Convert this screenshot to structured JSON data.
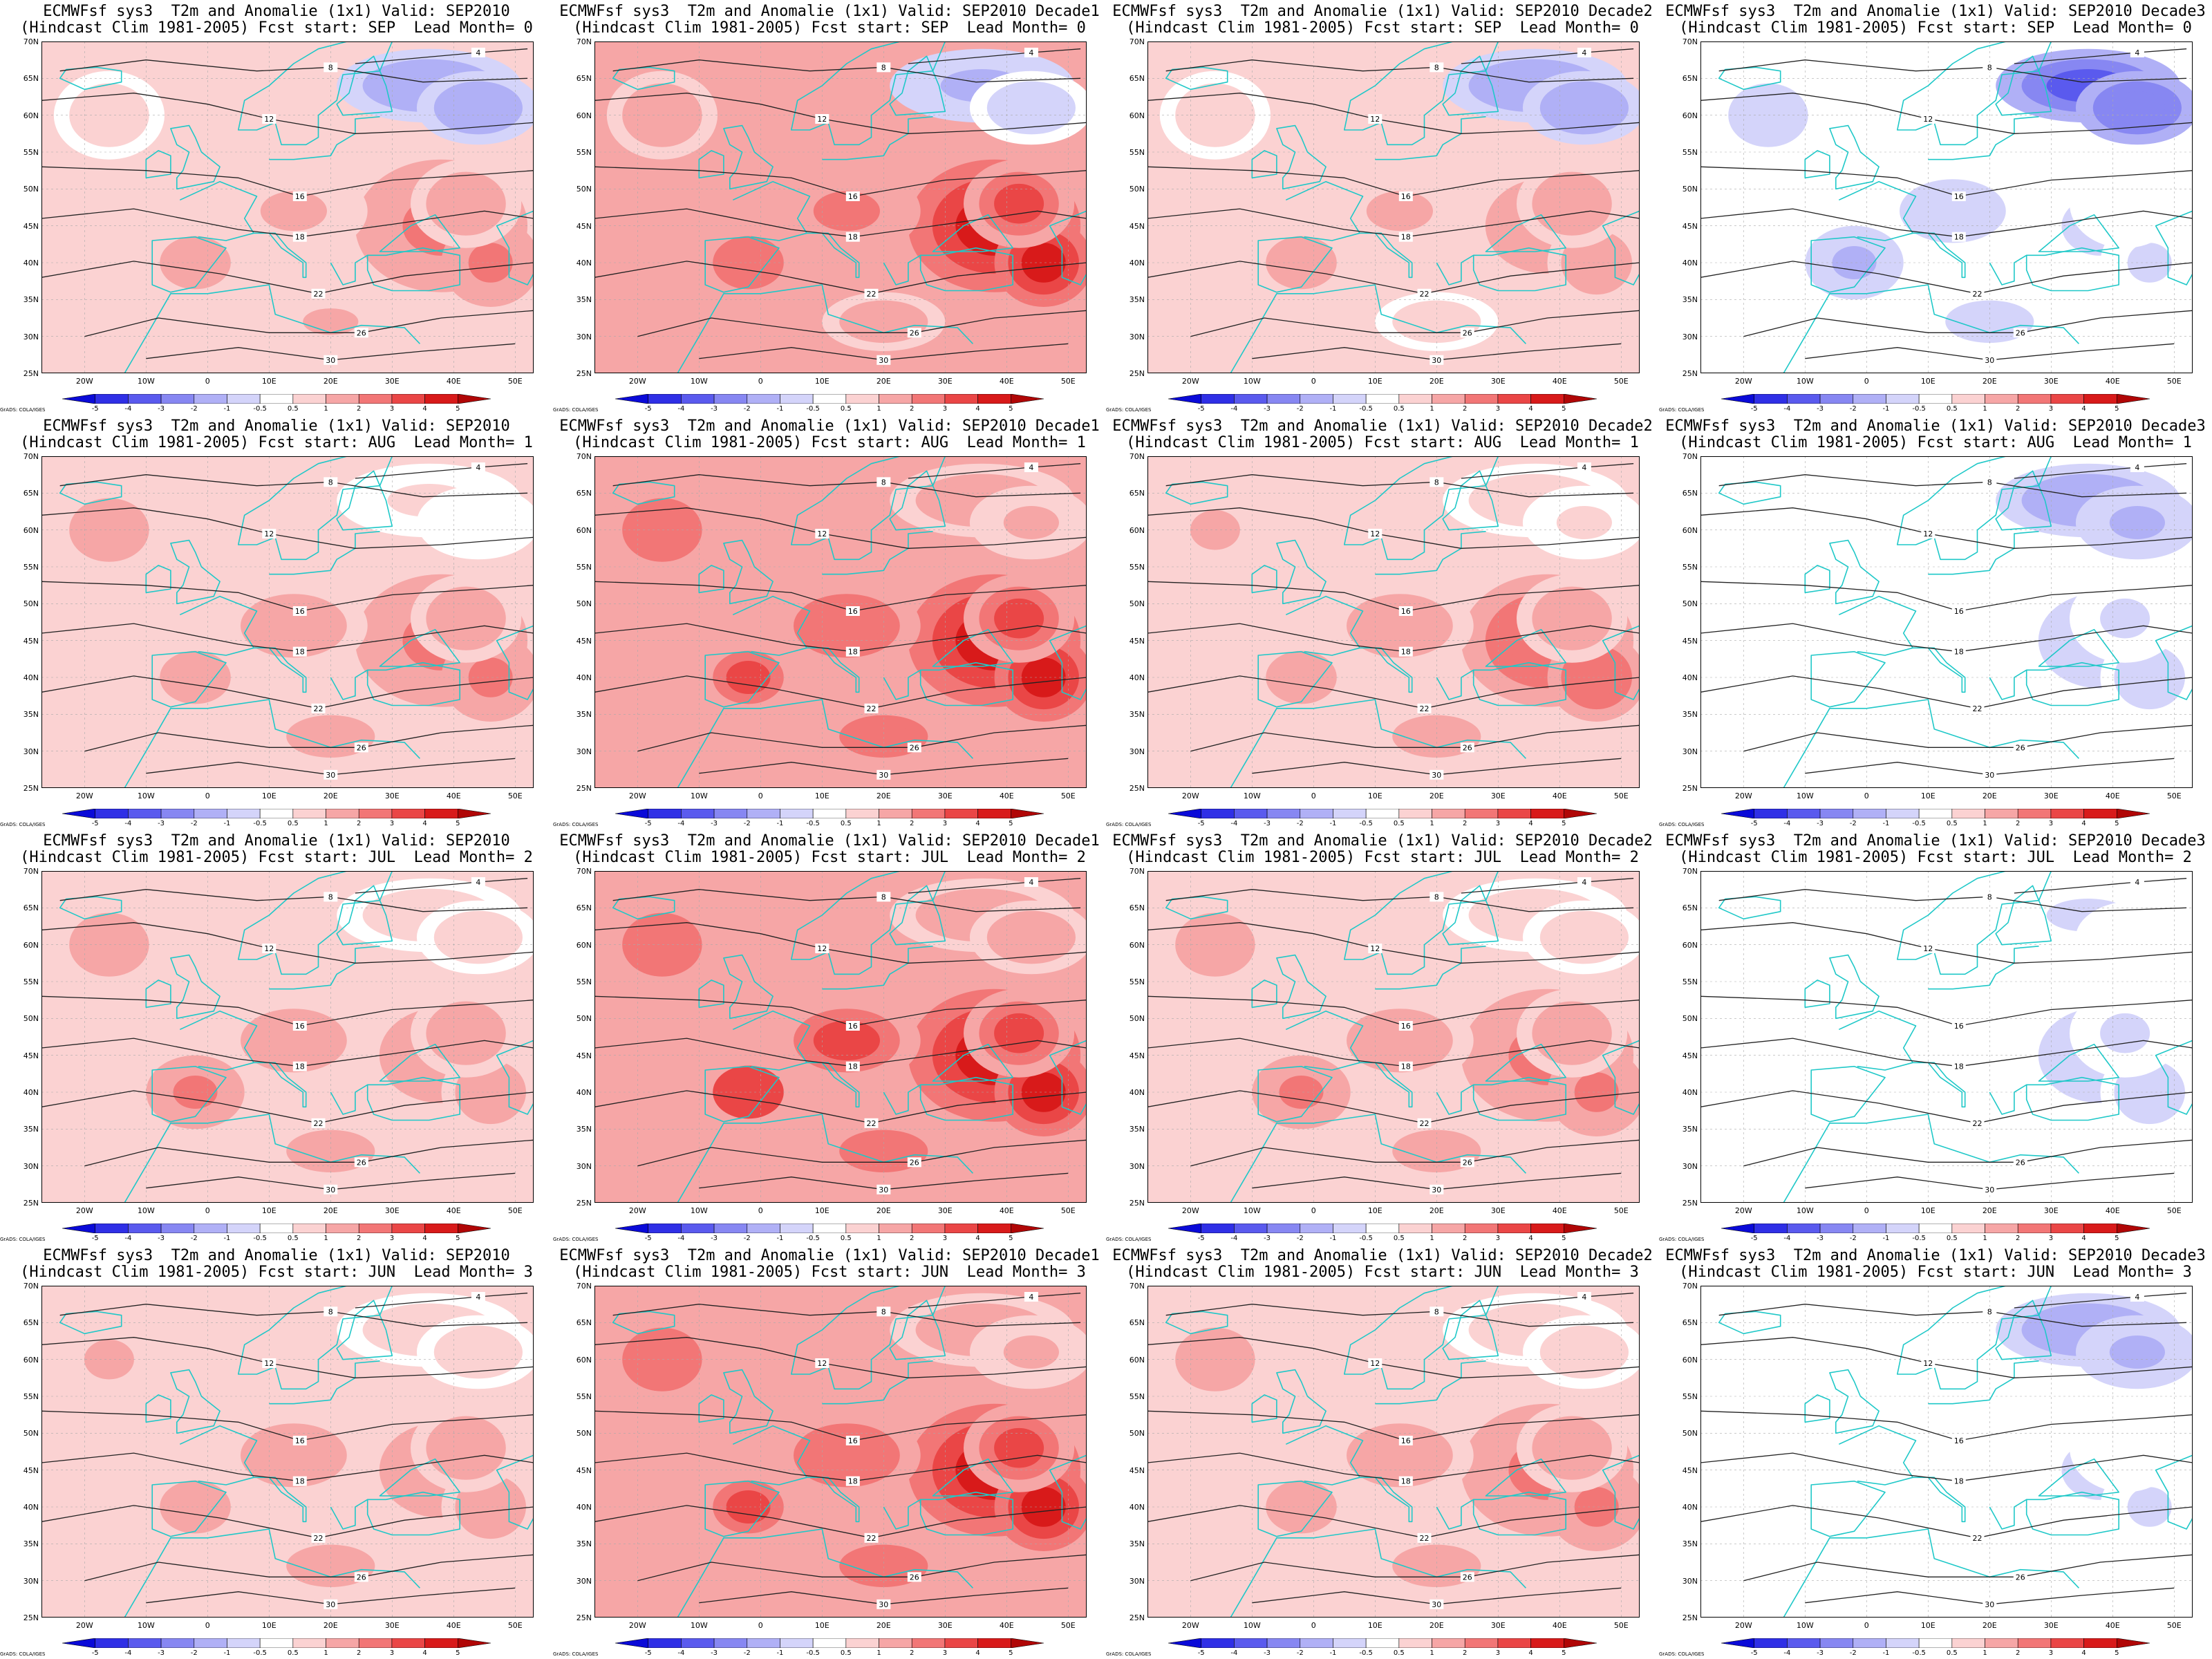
{
  "title_line1_template": "ECMWFsf sys3  T2m and Anomalie (1x1) Valid: {valid}",
  "title_line2_template": "(Hindcast Clim 1981-2005) Fcst start: {start}  Lead Month= {lead}",
  "columns": [
    {
      "valid": "SEP2010"
    },
    {
      "valid": "SEP2010 Decade1"
    },
    {
      "valid": "SEP2010 Decade2"
    },
    {
      "valid": "SEP2010 Decade3"
    }
  ],
  "rows": [
    {
      "start": "SEP",
      "lead": "0"
    },
    {
      "start": "AUG",
      "lead": "1"
    },
    {
      "start": "JUL",
      "lead": "2"
    },
    {
      "start": "JUN",
      "lead": "3"
    }
  ],
  "panels": [
    {
      "row": 0,
      "col": 0,
      "title_line1": "ECMWFsf sys3  T2m and Anomalie (1x1) Valid: SEP2010",
      "title_line2": "(Hindcast Clim 1981-2005) Fcst start: SEP  Lead Month= 0",
      "base_anomaly": 0.9,
      "east_anomaly": 2.4,
      "north_anomaly": -1.6
    },
    {
      "row": 0,
      "col": 1,
      "title_line1": "ECMWFsf sys3  T2m and Anomalie (1x1) Valid: SEP2010 Decade1",
      "title_line2": "(Hindcast Clim 1981-2005) Fcst start: SEP  Lead Month= 0",
      "base_anomaly": 1.6,
      "east_anomaly": 5,
      "north_anomaly": -1.2
    },
    {
      "row": 0,
      "col": 2,
      "title_line1": "ECMWFsf sys3  T2m and Anomalie (1x1) Valid: SEP2010 Decade2",
      "title_line2": "(Hindcast Clim 1981-2005) Fcst start: SEP  Lead Month= 0",
      "base_anomaly": 0.8,
      "east_anomaly": 1.8,
      "north_anomaly": -1.8
    },
    {
      "row": 0,
      "col": 3,
      "title_line1": "ECMWFsf sys3  T2m and Anomalie (1x1) Valid: SEP2010 Decade3",
      "title_line2": "(Hindcast Clim 1981-2005) Fcst start: SEP  Lead Month= 0",
      "base_anomaly": -0.7,
      "east_anomaly": -0.6,
      "north_anomaly": -3.5
    },
    {
      "row": 1,
      "col": 0,
      "title_line1": "ECMWFsf sys3  T2m and Anomalie (1x1) Valid: SEP2010",
      "title_line2": "(Hindcast Clim 1981-2005) Fcst start: AUG  Lead Month= 1",
      "base_anomaly": 1.2,
      "east_anomaly": 2.5,
      "north_anomaly": 0.6
    },
    {
      "row": 1,
      "col": 1,
      "title_line1": "ECMWFsf sys3  T2m and Anomalie (1x1) Valid: SEP2010 Decade1",
      "title_line2": "(Hindcast Clim 1981-2005) Fcst start: AUG  Lead Month= 1",
      "base_anomaly": 2.3,
      "east_anomaly": 5,
      "north_anomaly": 1.4
    },
    {
      "row": 1,
      "col": 2,
      "title_line1": "ECMWFsf sys3  T2m and Anomalie (1x1) Valid: SEP2010 Decade2",
      "title_line2": "(Hindcast Clim 1981-2005) Fcst start: AUG  Lead Month= 1",
      "base_anomaly": 1.1,
      "east_anomaly": 2.6,
      "north_anomaly": 0.7
    },
    {
      "row": 1,
      "col": 3,
      "title_line1": "ECMWFsf sys3  T2m and Anomalie (1x1) Valid: SEP2010 Decade3",
      "title_line2": "(Hindcast Clim 1981-2005) Fcst start: AUG  Lead Month= 1",
      "base_anomaly": 0.2,
      "east_anomaly": -0.8,
      "north_anomaly": -1.5
    },
    {
      "row": 2,
      "col": 0,
      "title_line1": "ECMWFsf sys3  T2m and Anomalie (1x1) Valid: SEP2010",
      "title_line2": "(Hindcast Clim 1981-2005) Fcst start: JUL  Lead Month= 2",
      "base_anomaly": 1.3,
      "east_anomaly": 1.8,
      "north_anomaly": 0.8
    },
    {
      "row": 2,
      "col": 1,
      "title_line1": "ECMWFsf sys3  T2m and Anomalie (1x1) Valid: SEP2010 Decade1",
      "title_line2": "(Hindcast Clim 1981-2005) Fcst start: JUL  Lead Month= 2",
      "base_anomaly": 2.4,
      "east_anomaly": 5,
      "north_anomaly": 1.8
    },
    {
      "row": 2,
      "col": 2,
      "title_line1": "ECMWFsf sys3  T2m and Anomalie (1x1) Valid: SEP2010 Decade2",
      "title_line2": "(Hindcast Clim 1981-2005) Fcst start: JUL  Lead Month= 2",
      "base_anomaly": 1.3,
      "east_anomaly": 2.2,
      "north_anomaly": 0.8
    },
    {
      "row": 2,
      "col": 3,
      "title_line1": "ECMWFsf sys3  T2m and Anomalie (1x1) Valid: SEP2010 Decade3",
      "title_line2": "(Hindcast Clim 1981-2005) Fcst start: JUL  Lead Month= 2",
      "base_anomaly": 0.3,
      "east_anomaly": -0.8,
      "north_anomaly": -0.6
    },
    {
      "row": 3,
      "col": 0,
      "title_line1": "ECMWFsf sys3  T2m and Anomalie (1x1) Valid: SEP2010",
      "title_line2": "(Hindcast Clim 1981-2005) Fcst start: JUN  Lead Month= 3",
      "base_anomaly": 1.1,
      "east_anomaly": 1.8,
      "north_anomaly": 0.8
    },
    {
      "row": 3,
      "col": 1,
      "title_line1": "ECMWFsf sys3  T2m and Anomalie (1x1) Valid: SEP2010 Decade1",
      "title_line2": "(Hindcast Clim 1981-2005) Fcst start: JUN  Lead Month= 3",
      "base_anomaly": 2.3,
      "east_anomaly": 4.5,
      "north_anomaly": 1.5
    },
    {
      "row": 3,
      "col": 2,
      "title_line1": "ECMWFsf sys3  T2m and Anomalie (1x1) Valid: SEP2010 Decade2",
      "title_line2": "(Hindcast Clim 1981-2005) Fcst start: JUN  Lead Month= 3",
      "base_anomaly": 1.2,
      "east_anomaly": 2.2,
      "north_anomaly": 0.8
    },
    {
      "row": 3,
      "col": 3,
      "title_line1": "ECMWFsf sys3  T2m and Anomalie (1x1) Valid: SEP2010 Decade3",
      "title_line2": "(Hindcast Clim 1981-2005) Fcst start: JUN  Lead Month= 3",
      "base_anomaly": 0.2,
      "east_anomaly": -0.6,
      "north_anomaly": -1.5
    }
  ],
  "map": {
    "lat_labels": [
      "70N",
      "65N",
      "60N",
      "55N",
      "50N",
      "45N",
      "40N",
      "35N",
      "30N",
      "25N"
    ],
    "lon_labels": [
      "20W",
      "10W",
      "0",
      "10E",
      "20E",
      "30E",
      "40E",
      "50E"
    ],
    "lat_range": [
      25,
      70
    ],
    "lon_range": [
      -27,
      53
    ]
  },
  "colorbar": {
    "labels": [
      "-5",
      "-4",
      "-3",
      "-2",
      "-1",
      "-0.5",
      "0.5",
      "1",
      "2",
      "3",
      "4",
      "5"
    ],
    "colors": [
      "#0a0ad8",
      "#2f2fe6",
      "#5a5aee",
      "#8787f2",
      "#b0b0f6",
      "#d4d4fa",
      "#ffffff",
      "#fbd2d2",
      "#f6a6a6",
      "#f27676",
      "#ea4646",
      "#d81a1a",
      "#b00606"
    ]
  },
  "credit": "GrADS: COLA/IGES"
}
